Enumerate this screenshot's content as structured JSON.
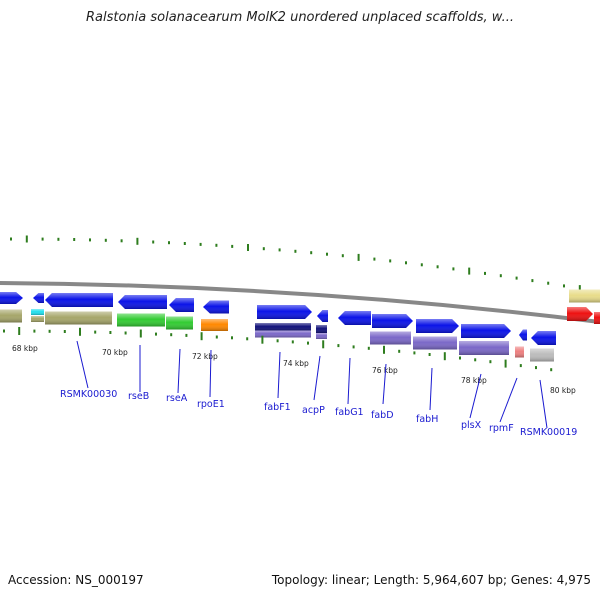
{
  "title": "Ralstonia solanacearum MolK2 unordered unplaced scaffolds, w...",
  "footer": {
    "accession": "Accession: NS_000197",
    "stats": "Topology: linear; Length: 5,964,607 bp; Genes: 4,975"
  },
  "colors": {
    "backbone": "#888888",
    "tick": "#2e7d1e",
    "forward_gene": "#0b14e8",
    "label": "#1a1ad0",
    "pathway": {
      "olive": "#a6a66a",
      "green": "#33cc33",
      "orange": "#ff8800",
      "navy": "#12127a",
      "violet": "#7b68c8",
      "pink": "#ee8080",
      "grey": "#bcbcbc",
      "cyan": "#22e0ee",
      "khaki": "#e8dc8a",
      "red": "#ee1111"
    }
  },
  "scale_labels": [
    "68 kbp",
    "70 kbp",
    "72 kbp",
    "74 kbp",
    "76 kbp",
    "78 kbp",
    "80 kbp"
  ],
  "gene_labels": [
    "RSMK00030",
    "rseB",
    "rseA",
    "rpoE1",
    "fabF1",
    "acpP",
    "fabG1",
    "fabD",
    "fabH",
    "plsX",
    "rpmF",
    "RSMK00019"
  ]
}
